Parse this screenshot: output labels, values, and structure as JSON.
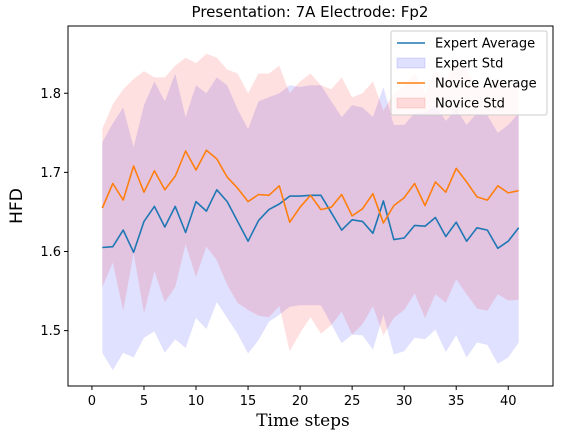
{
  "chart_data": {
    "type": "line",
    "title": "Presentation: 7A Electrode: Fp2",
    "xlabel": "Time steps",
    "ylabel": "HFD",
    "xlim": [
      -2.3,
      44.3
    ],
    "ylim": [
      1.43,
      1.885
    ],
    "xticks": [
      0,
      5,
      10,
      15,
      20,
      25,
      30,
      35,
      40
    ],
    "yticks": [
      1.5,
      1.6,
      1.7,
      1.8
    ],
    "legend_position": "top-right",
    "x": [
      1,
      2,
      3,
      4,
      5,
      6,
      7,
      8,
      9,
      10,
      11,
      12,
      13,
      14,
      15,
      16,
      17,
      18,
      19,
      20,
      21,
      22,
      23,
      24,
      25,
      26,
      27,
      28,
      29,
      30,
      31,
      32,
      33,
      34,
      35,
      36,
      37,
      38,
      39,
      40,
      41
    ],
    "series": [
      {
        "name": "Expert Average",
        "kind": "line",
        "color": "#1f77b4",
        "values": [
          1.605,
          1.606,
          1.627,
          1.599,
          1.638,
          1.657,
          1.631,
          1.657,
          1.624,
          1.663,
          1.651,
          1.678,
          1.663,
          1.638,
          1.613,
          1.639,
          1.653,
          1.66,
          1.67,
          1.67,
          1.671,
          1.671,
          1.649,
          1.627,
          1.64,
          1.638,
          1.623,
          1.664,
          1.615,
          1.617,
          1.633,
          1.632,
          1.643,
          1.619,
          1.637,
          1.613,
          1.63,
          1.627,
          1.604,
          1.613,
          1.63
        ]
      },
      {
        "name": "Expert Std",
        "kind": "band",
        "color": "#0000ff",
        "upper": [
          1.738,
          1.762,
          1.782,
          1.732,
          1.785,
          1.815,
          1.79,
          1.825,
          1.77,
          1.81,
          1.8,
          1.82,
          1.81,
          1.78,
          1.755,
          1.79,
          1.795,
          1.8,
          1.81,
          1.808,
          1.81,
          1.81,
          1.79,
          1.77,
          1.785,
          1.782,
          1.77,
          1.808,
          1.76,
          1.76,
          1.775,
          1.775,
          1.785,
          1.765,
          1.78,
          1.76,
          1.775,
          1.772,
          1.75,
          1.76,
          1.775
        ],
        "lower": [
          1.472,
          1.45,
          1.472,
          1.466,
          1.491,
          1.499,
          1.472,
          1.489,
          1.478,
          1.516,
          1.502,
          1.536,
          1.516,
          1.496,
          1.471,
          1.488,
          1.511,
          1.52,
          1.53,
          1.532,
          1.532,
          1.532,
          1.508,
          1.484,
          1.495,
          1.494,
          1.476,
          1.52,
          1.47,
          1.474,
          1.491,
          1.489,
          1.501,
          1.473,
          1.494,
          1.466,
          1.485,
          1.482,
          1.458,
          1.466,
          1.485
        ]
      },
      {
        "name": "Novice Average",
        "kind": "line",
        "color": "#ff7f0e",
        "values": [
          1.655,
          1.686,
          1.665,
          1.708,
          1.675,
          1.702,
          1.678,
          1.695,
          1.727,
          1.703,
          1.728,
          1.717,
          1.694,
          1.68,
          1.663,
          1.672,
          1.671,
          1.683,
          1.637,
          1.656,
          1.671,
          1.653,
          1.656,
          1.672,
          1.645,
          1.654,
          1.673,
          1.636,
          1.658,
          1.668,
          1.686,
          1.658,
          1.688,
          1.675,
          1.705,
          1.688,
          1.669,
          1.665,
          1.683,
          1.674,
          1.677
        ]
      },
      {
        "name": "Novice Std",
        "kind": "band",
        "color": "#ff0000",
        "upper": [
          1.755,
          1.786,
          1.805,
          1.818,
          1.828,
          1.82,
          1.82,
          1.835,
          1.845,
          1.838,
          1.85,
          1.845,
          1.83,
          1.825,
          1.8,
          1.825,
          1.825,
          1.835,
          1.8,
          1.815,
          1.825,
          1.81,
          1.805,
          1.82,
          1.795,
          1.8,
          1.815,
          1.778,
          1.8,
          1.81,
          1.825,
          1.8,
          1.83,
          1.815,
          1.845,
          1.83,
          1.81,
          1.805,
          1.82,
          1.81,
          1.815
        ],
        "lower": [
          1.555,
          1.586,
          1.525,
          1.598,
          1.522,
          1.575,
          1.536,
          1.555,
          1.609,
          1.568,
          1.606,
          1.589,
          1.558,
          1.535,
          1.526,
          1.519,
          1.517,
          1.531,
          1.474,
          1.497,
          1.517,
          1.496,
          1.507,
          1.524,
          1.495,
          1.508,
          1.531,
          1.494,
          1.516,
          1.526,
          1.547,
          1.516,
          1.546,
          1.535,
          1.565,
          1.546,
          1.528,
          1.525,
          1.546,
          1.538,
          1.539
        ]
      }
    ]
  }
}
